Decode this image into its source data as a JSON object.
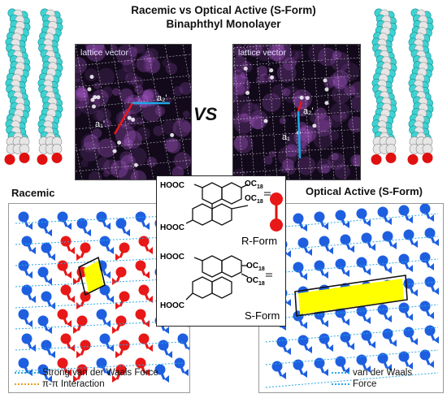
{
  "title_line1": "Racemic vs Optical Active (S-Form)",
  "title_line2": "Binaphthyl Monolayer",
  "vs": "VS",
  "stm_left": {
    "lattice_label": "lattice vector",
    "vec_a": "a₁'",
    "vec_b": "a₂'"
  },
  "stm_right": {
    "lattice_label": "lattice vector",
    "vec_a": "a₁",
    "vec_b": "a₂'"
  },
  "racemic_label": "Racemic",
  "optical_label": "Optical Active (S-Form)",
  "structure": {
    "group_top": "HOOC",
    "group_bottom": "HOOC",
    "oc18": "OC",
    "sub18": "18",
    "r_form": "R-Form",
    "s_form": "S-Form"
  },
  "legend_left": {
    "item1": "Strong van der Waals Force",
    "item2": "π-π Interaction"
  },
  "legend_right": {
    "line1": "van der Waals",
    "line2": "Force"
  },
  "colors": {
    "cyan_atom": "#3ed3d3",
    "white_atom": "#e6e6e6",
    "red_atom": "#e01010",
    "blue_molecule": "#1e5fe0",
    "red_molecule": "#e81818",
    "highlight": "#ffff00",
    "stm_bg": "#120a1a",
    "stm_spot": "#b15cd6",
    "vdw_line": "#2aa6e8",
    "pipi_line": "#e8a020"
  },
  "icons": [
    "space-filling-model",
    "stm-image",
    "molecule-model"
  ]
}
